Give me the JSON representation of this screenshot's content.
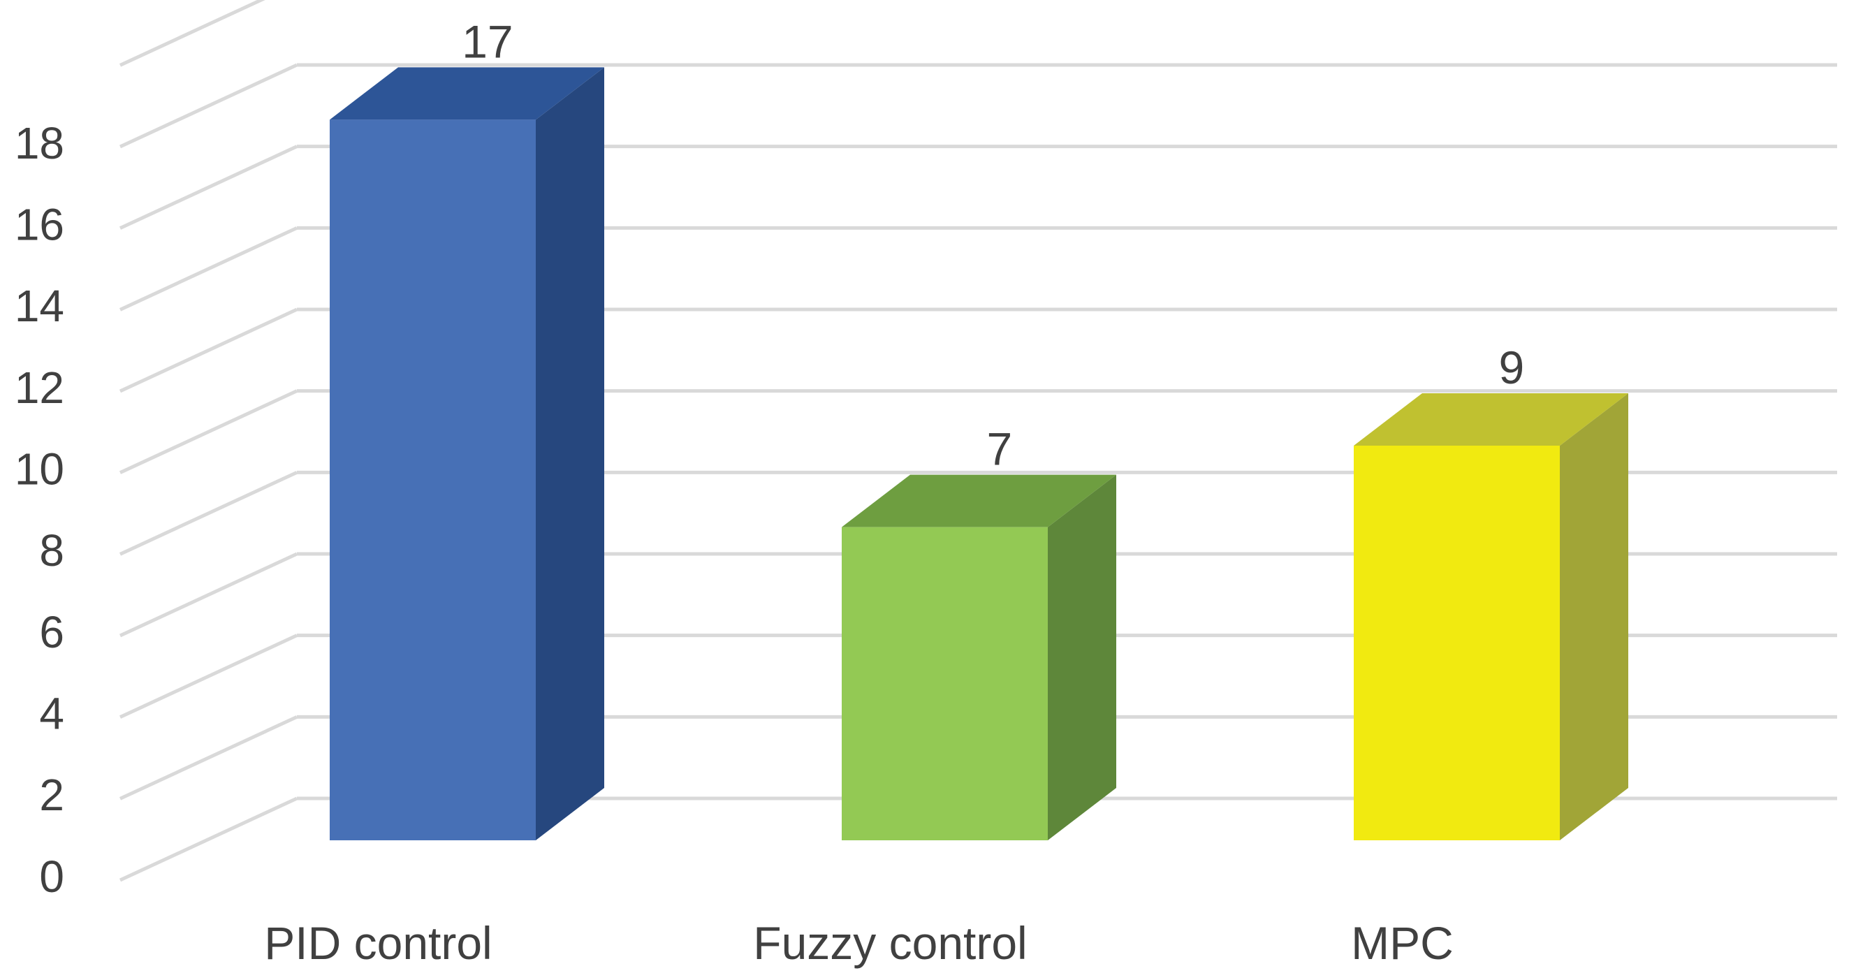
{
  "chart_data": {
    "type": "bar",
    "title": "",
    "xlabel": "",
    "ylabel": "",
    "categories": [
      "PID control",
      "Fuzzy control",
      "MPC"
    ],
    "values": [
      17,
      7,
      9
    ],
    "data_labels": [
      "17",
      "7",
      "9"
    ],
    "ylim": [
      0,
      18
    ],
    "yticks": [
      "0",
      "2",
      "4",
      "6",
      "8",
      "10",
      "12",
      "14",
      "16",
      "18"
    ],
    "grid": true,
    "legend": "none",
    "style": "3d-column",
    "colors": {
      "PID control": {
        "front": "#4770B6",
        "side": "#26477E",
        "top": "#2D5597"
      },
      "Fuzzy control": {
        "front": "#93C954",
        "side": "#5E873A",
        "top": "#6E9E40"
      },
      "MPC": {
        "front": "#F1EA10",
        "side": "#A1A537",
        "top": "#C0C130"
      },
      "grid": "#D9D9D9",
      "text": "#404040"
    }
  }
}
